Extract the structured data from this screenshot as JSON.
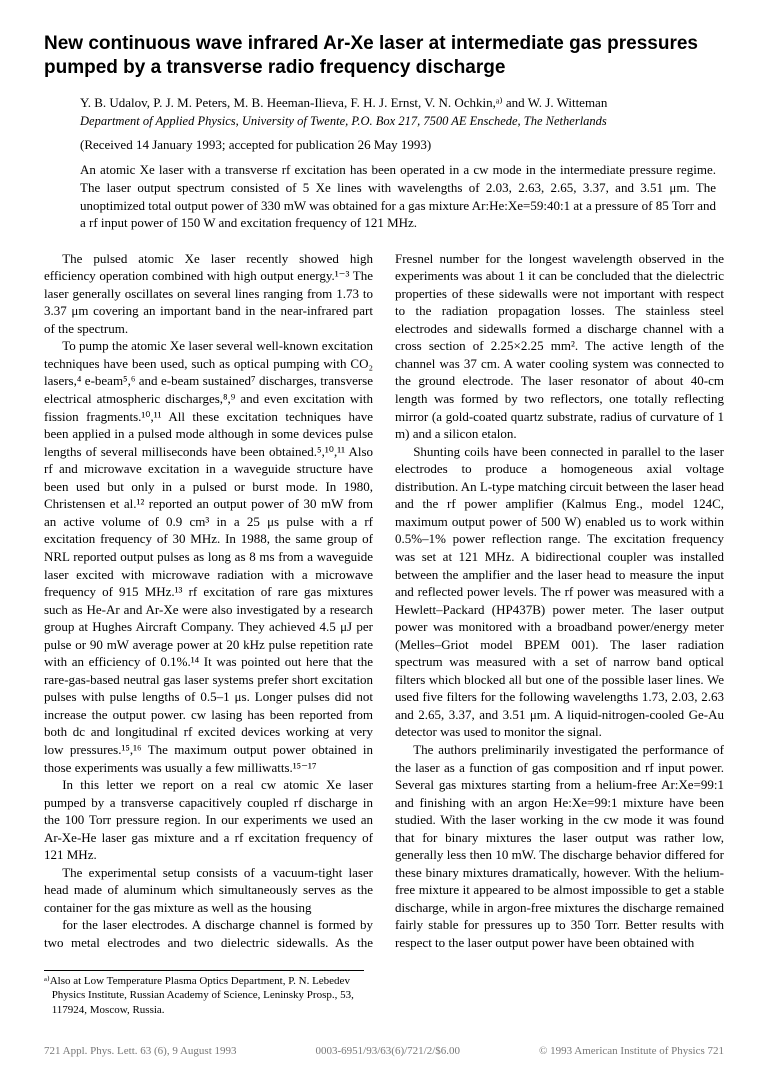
{
  "title": "New continuous wave infrared Ar-Xe laser at intermediate gas pressures pumped by a transverse radio frequency discharge",
  "authors": "Y. B. Udalov, P. J. M. Peters, M. B. Heeman-Ilieva, F. H. J. Ernst, V. N. Ochkin,ᵃ⁾ and W. J. Witteman",
  "dept": "Department of Applied Physics, University of Twente, P.O. Box 217, 7500 AE Enschede, The Netherlands",
  "dates": "(Received 14 January 1993; accepted for publication 26 May 1993)",
  "abstract": "An atomic Xe laser with a transverse rf excitation has been operated in a cw mode in the intermediate pressure regime. The laser output spectrum consisted of 5 Xe lines with wavelengths of 2.03, 2.63, 2.65, 3.37, and 3.51 μm. The unoptimized total output power of 330 mW was obtained for a gas mixture Ar:He:Xe=59:40:1 at a pressure of 85 Torr and a rf input power of 150 W and excitation frequency of 121 MHz.",
  "p1": "The pulsed atomic Xe laser recently showed high efficiency operation combined with high output energy.¹⁻³ The laser generally oscillates on several lines ranging from 1.73 to 3.37 μm covering an important band in the near-infrared part of the spectrum.",
  "p2": "To pump the atomic Xe laser several well-known excitation techniques have been used, such as optical pumping with CO₂ lasers,⁴ e-beam⁵,⁶ and e-beam sustained⁷ discharges, transverse electrical atmospheric discharges,⁸,⁹ and even excitation with fission fragments.¹⁰,¹¹ All these excitation techniques have been applied in a pulsed mode although in some devices pulse lengths of several milliseconds have been obtained.⁵,¹⁰,¹¹ Also rf and microwave excitation in a waveguide structure have been used but only in a pulsed or burst mode. In 1980, Christensen et al.¹² reported an output power of 30 mW from an active volume of 0.9 cm³ in a 25 μs pulse with a rf excitation frequency of 30 MHz. In 1988, the same group of NRL reported output pulses as long as 8 ms from a waveguide laser excited with microwave radiation with a microwave frequency of 915 MHz.¹³ rf excitation of rare gas mixtures such as He-Ar and Ar-Xe were also investigated by a research group at Hughes Aircraft Company. They achieved 4.5 μJ per pulse or 90 mW average power at 20 kHz pulse repetition rate with an efficiency of 0.1%.¹⁴ It was pointed out here that the rare-gas-based neutral gas laser systems prefer short excitation pulses with pulse lengths of 0.5–1 μs. Longer pulses did not increase the output power. cw lasing has been reported from both dc and longitudinal rf excited devices working at very low pressures.¹⁵,¹⁶ The maximum output power obtained in those experiments was usually a few milliwatts.¹⁵⁻¹⁷",
  "p3": "In this letter we report on a real cw atomic Xe laser pumped by a transverse capacitively coupled rf discharge in the 100 Torr pressure region. In our experiments we used an Ar-Xe-He laser gas mixture and a rf excitation frequency of 121 MHz.",
  "p4": "The experimental setup consists of a vacuum-tight laser head made of aluminum which simultaneously serves as the container for the gas mixture as well as the housing",
  "p5": "for the laser electrodes. A discharge channel is formed by two metal electrodes and two dielectric sidewalls. As the Fresnel number for the longest wavelength observed in the experiments was about 1 it can be concluded that the dielectric properties of these sidewalls were not important with respect to the radiation propagation losses. The stainless steel electrodes and sidewalls formed a discharge channel with a cross section of 2.25×2.25 mm². The active length of the channel was 37 cm. A water cooling system was connected to the ground electrode. The laser resonator of about 40-cm length was formed by two reflectors, one totally reflecting mirror (a gold-coated quartz substrate, radius of curvature of 1 m) and a silicon etalon.",
  "p6": "Shunting coils have been connected in parallel to the laser electrodes to produce a homogeneous axial voltage distribution. An L-type matching circuit between the laser head and the rf power amplifier (Kalmus Eng., model 124C, maximum output power of 500 W) enabled us to work within 0.5%–1% power reflection range. The excitation frequency was set at 121 MHz. A bidirectional coupler was installed between the amplifier and the laser head to measure the input and reflected power levels. The rf power was measured with a Hewlett–Packard (HP437B) power meter. The laser output power was monitored with a broadband power/energy meter (Melles–Griot model BPEM 001). The laser radiation spectrum was measured with a set of narrow band optical filters which blocked all but one of the possible laser lines. We used five filters for the following wavelengths 1.73, 2.03, 2.63 and 2.65, 3.37, and 3.51 μm. A liquid-nitrogen-cooled Ge-Au detector was used to monitor the signal.",
  "p7": "The authors preliminarily investigated the performance of the laser as a function of gas composition and rf input power. Several gas mixtures starting from a helium-free Ar:Xe=99:1 and finishing with an argon He:Xe=99:1 mixture have been studied. With the laser working in the cw mode it was found that for binary mixtures the laser output was rather low, generally less then 10 mW. The discharge behavior differed for these binary mixtures dramatically, however. With the helium-free mixture it appeared to be almost impossible to get a stable discharge, while in argon-free mixtures the discharge remained fairly stable for pressures up to 350 Torr. Better results with respect to the laser output power have been obtained with",
  "footnote": "ᵃ⁾Also at Low Temperature Plasma Optics Department, P. N. Lebedev Physics Institute, Russian Academy of Science, Leninsky Prosp., 53, 117924, Moscow, Russia.",
  "footer": {
    "left": "721      Appl. Phys. Lett. 63 (6), 9 August 1993",
    "mid": "0003-6951/93/63(6)/721/2/$6.00",
    "right": "© 1993 American Institute of Physics      721"
  }
}
